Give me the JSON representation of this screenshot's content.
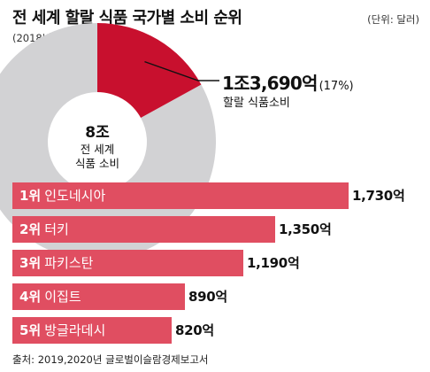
{
  "title": "전 세계 할랄 식품 국가별 소비 순위",
  "unit_note": "(단위: 달러)",
  "subtitle": "(2018년 기준)",
  "source": "출처: 2019,2020년 글로벌이슬람경제보고서",
  "colors": {
    "accent": "#c8102e",
    "bar": "#e04e61",
    "donut_rest": "#d2d2d4",
    "text": "#111111"
  },
  "chart_data": [
    {
      "type": "pie",
      "center_value": "8조",
      "center_label_line1": "전 세계",
      "center_label_line2": "식품 소비",
      "highlight": {
        "label": "할랄 식품소비",
        "value_text": "1조3,690억",
        "percent_text": "(17%)",
        "percent": 17
      },
      "slices": [
        {
          "label": "할랄 식품소비",
          "value": 17
        },
        {
          "label": "",
          "value": 83
        }
      ]
    },
    {
      "type": "bar",
      "orientation": "horizontal",
      "max_value": 1730,
      "bars": [
        {
          "rank": "1위",
          "country": "인도네시아",
          "value": 1730,
          "value_text": "1,730억"
        },
        {
          "rank": "2위",
          "country": "터키",
          "value": 1350,
          "value_text": "1,350억"
        },
        {
          "rank": "3위",
          "country": "파키스탄",
          "value": 1190,
          "value_text": "1,190억"
        },
        {
          "rank": "4위",
          "country": "이집트",
          "value": 890,
          "value_text": "890억"
        },
        {
          "rank": "5위",
          "country": "방글라데시",
          "value": 820,
          "value_text": "820억"
        }
      ]
    }
  ]
}
